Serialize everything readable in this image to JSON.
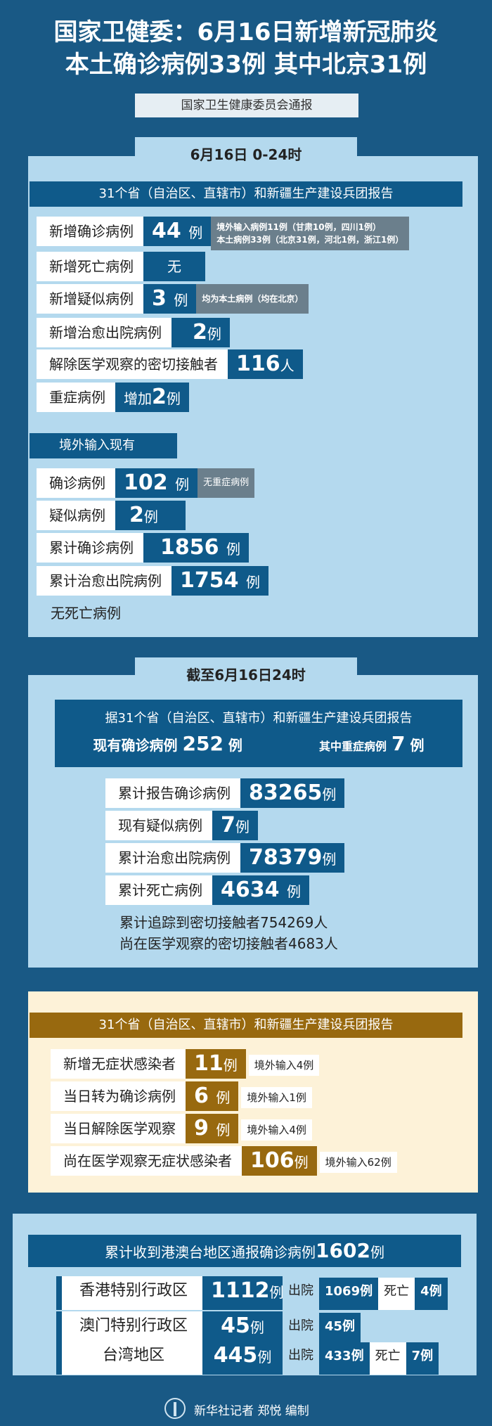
{
  "header": {
    "title_line1": "国家卫健委：6月16日新增新冠肺炎",
    "title_line2": "本土确诊病例33例 其中北京31例",
    "source": "国家卫生健康委员会通报"
  },
  "daily": {
    "tab": "6月16日 0-24时",
    "report": "31个省（自治区、直辖市）和新疆生产建设兵团报告",
    "rows": [
      {
        "label": "新增确诊病例",
        "value": "44",
        "unit": "例",
        "note1": "境外输入病例11例（甘肃10例，四川1例）",
        "note2": "本土病例33例（北京31例，河北1例，浙江1例）"
      },
      {
        "label": "新增死亡病例",
        "value": "无"
      },
      {
        "label": "新增疑似病例",
        "value": "3",
        "unit": "例",
        "note1": "均为本土病例（均在北京）"
      },
      {
        "label": "新增治愈出院病例",
        "value": "2",
        "unit": "例"
      },
      {
        "label": "解除医学观察的密切接触者",
        "value": "116",
        "unit": "人"
      },
      {
        "label": "重症病例",
        "prefix": "增加",
        "value": "2",
        "unit": "例"
      }
    ],
    "imported_title": "境外输入现有",
    "imported": [
      {
        "label": "确诊病例",
        "value": "102",
        "unit": "例",
        "note1": "无重症病例"
      },
      {
        "label": "疑似病例",
        "value": "2",
        "unit": "例"
      },
      {
        "label": "累计确诊病例",
        "value": "1856",
        "unit": "例"
      },
      {
        "label": "累计治愈出院病例",
        "value": "1754",
        "unit": "例"
      }
    ],
    "no_death": "无死亡病例"
  },
  "cumulative": {
    "tab": "截至6月16日24时",
    "report": "据31个省（自治区、直辖市）和新疆生产建设兵团报告",
    "current_label": "现有确诊病例",
    "current_value": "252",
    "current_unit": "例",
    "severe_label": "其中重症病例",
    "severe_value": "7",
    "severe_unit": "例",
    "rows": [
      {
        "label": "累计报告确诊病例",
        "value": "83265",
        "unit": "例"
      },
      {
        "label": "现有疑似病例",
        "value": "7",
        "unit": "例"
      },
      {
        "label": "累计治愈出院病例",
        "value": "78379",
        "unit": "例"
      },
      {
        "label": "累计死亡病例",
        "value": "4634",
        "unit": "例"
      }
    ],
    "traced": "累计追踪到密切接触者754269人",
    "observing": "尚在医学观察的密切接触者4683人"
  },
  "asymptomatic": {
    "report": "31个省（自治区、直辖市）和新疆生产建设兵团报告",
    "rows": [
      {
        "label": "新增无症状感染者",
        "value": "11",
        "unit": "例",
        "extra": "境外输入4例"
      },
      {
        "label": "当日转为确诊病例",
        "value": "6",
        "unit": "例",
        "extra": "境外输入1例"
      },
      {
        "label": "当日解除医学观察",
        "value": "9",
        "unit": "例",
        "extra": "境外输入4例"
      },
      {
        "label": "尚在医学观察无症状感染者",
        "value": "106",
        "unit": "例",
        "extra": "境外输入62例"
      }
    ]
  },
  "hmt": {
    "title": "累计收到港澳台地区通报确诊病例",
    "total": "1602",
    "unit": "例",
    "rows": [
      {
        "label": "香港特别行政区",
        "value": "1112",
        "unit": "例",
        "discharged_label": "出院",
        "discharged": "1069例",
        "death_label": "死亡",
        "death": "4例"
      },
      {
        "label": "澳门特别行政区",
        "value": "45",
        "unit": "例",
        "discharged_label": "出院",
        "discharged": "45例"
      },
      {
        "label": "台湾地区",
        "value": "445",
        "unit": "例",
        "discharged_label": "出院",
        "discharged": "433例",
        "death_label": "死亡",
        "death": "7例"
      }
    ]
  },
  "footer": {
    "credit": "新华社记者 郑悦 编制"
  },
  "colors": {
    "background": "#195985",
    "panel": "#b4d9ee",
    "box": "#0f5a8a",
    "note": "#6b7f8c",
    "brown": "#98690f",
    "cream": "#fdf2d8"
  }
}
